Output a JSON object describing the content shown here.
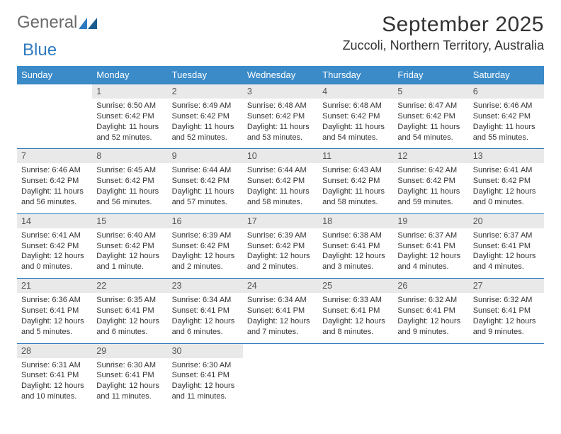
{
  "brand": {
    "word1": "General",
    "word2": "Blue"
  },
  "title": "September 2025",
  "location": "Zuccoli, Northern Territory, Australia",
  "colors": {
    "header_bg": "#3b8bc9",
    "header_text": "#ffffff",
    "daynum_bg": "#e9e9e9",
    "row_border": "#2f7bbf",
    "body_text": "#333333",
    "logo_gray": "#6a6a6a",
    "logo_blue": "#2f7bbf"
  },
  "typography": {
    "title_fontsize": 30,
    "location_fontsize": 18,
    "dayheader_fontsize": 13,
    "cell_fontsize": 11
  },
  "day_headers": [
    "Sunday",
    "Monday",
    "Tuesday",
    "Wednesday",
    "Thursday",
    "Friday",
    "Saturday"
  ],
  "weeks": [
    {
      "nums": [
        "",
        "1",
        "2",
        "3",
        "4",
        "5",
        "6"
      ],
      "cells": [
        null,
        {
          "sunrise": "Sunrise: 6:50 AM",
          "sunset": "Sunset: 6:42 PM",
          "day1": "Daylight: 11 hours",
          "day2": "and 52 minutes."
        },
        {
          "sunrise": "Sunrise: 6:49 AM",
          "sunset": "Sunset: 6:42 PM",
          "day1": "Daylight: 11 hours",
          "day2": "and 52 minutes."
        },
        {
          "sunrise": "Sunrise: 6:48 AM",
          "sunset": "Sunset: 6:42 PM",
          "day1": "Daylight: 11 hours",
          "day2": "and 53 minutes."
        },
        {
          "sunrise": "Sunrise: 6:48 AM",
          "sunset": "Sunset: 6:42 PM",
          "day1": "Daylight: 11 hours",
          "day2": "and 54 minutes."
        },
        {
          "sunrise": "Sunrise: 6:47 AM",
          "sunset": "Sunset: 6:42 PM",
          "day1": "Daylight: 11 hours",
          "day2": "and 54 minutes."
        },
        {
          "sunrise": "Sunrise: 6:46 AM",
          "sunset": "Sunset: 6:42 PM",
          "day1": "Daylight: 11 hours",
          "day2": "and 55 minutes."
        }
      ]
    },
    {
      "nums": [
        "7",
        "8",
        "9",
        "10",
        "11",
        "12",
        "13"
      ],
      "cells": [
        {
          "sunrise": "Sunrise: 6:46 AM",
          "sunset": "Sunset: 6:42 PM",
          "day1": "Daylight: 11 hours",
          "day2": "and 56 minutes."
        },
        {
          "sunrise": "Sunrise: 6:45 AM",
          "sunset": "Sunset: 6:42 PM",
          "day1": "Daylight: 11 hours",
          "day2": "and 56 minutes."
        },
        {
          "sunrise": "Sunrise: 6:44 AM",
          "sunset": "Sunset: 6:42 PM",
          "day1": "Daylight: 11 hours",
          "day2": "and 57 minutes."
        },
        {
          "sunrise": "Sunrise: 6:44 AM",
          "sunset": "Sunset: 6:42 PM",
          "day1": "Daylight: 11 hours",
          "day2": "and 58 minutes."
        },
        {
          "sunrise": "Sunrise: 6:43 AM",
          "sunset": "Sunset: 6:42 PM",
          "day1": "Daylight: 11 hours",
          "day2": "and 58 minutes."
        },
        {
          "sunrise": "Sunrise: 6:42 AM",
          "sunset": "Sunset: 6:42 PM",
          "day1": "Daylight: 11 hours",
          "day2": "and 59 minutes."
        },
        {
          "sunrise": "Sunrise: 6:41 AM",
          "sunset": "Sunset: 6:42 PM",
          "day1": "Daylight: 12 hours",
          "day2": "and 0 minutes."
        }
      ]
    },
    {
      "nums": [
        "14",
        "15",
        "16",
        "17",
        "18",
        "19",
        "20"
      ],
      "cells": [
        {
          "sunrise": "Sunrise: 6:41 AM",
          "sunset": "Sunset: 6:42 PM",
          "day1": "Daylight: 12 hours",
          "day2": "and 0 minutes."
        },
        {
          "sunrise": "Sunrise: 6:40 AM",
          "sunset": "Sunset: 6:42 PM",
          "day1": "Daylight: 12 hours",
          "day2": "and 1 minute."
        },
        {
          "sunrise": "Sunrise: 6:39 AM",
          "sunset": "Sunset: 6:42 PM",
          "day1": "Daylight: 12 hours",
          "day2": "and 2 minutes."
        },
        {
          "sunrise": "Sunrise: 6:39 AM",
          "sunset": "Sunset: 6:42 PM",
          "day1": "Daylight: 12 hours",
          "day2": "and 2 minutes."
        },
        {
          "sunrise": "Sunrise: 6:38 AM",
          "sunset": "Sunset: 6:41 PM",
          "day1": "Daylight: 12 hours",
          "day2": "and 3 minutes."
        },
        {
          "sunrise": "Sunrise: 6:37 AM",
          "sunset": "Sunset: 6:41 PM",
          "day1": "Daylight: 12 hours",
          "day2": "and 4 minutes."
        },
        {
          "sunrise": "Sunrise: 6:37 AM",
          "sunset": "Sunset: 6:41 PM",
          "day1": "Daylight: 12 hours",
          "day2": "and 4 minutes."
        }
      ]
    },
    {
      "nums": [
        "21",
        "22",
        "23",
        "24",
        "25",
        "26",
        "27"
      ],
      "cells": [
        {
          "sunrise": "Sunrise: 6:36 AM",
          "sunset": "Sunset: 6:41 PM",
          "day1": "Daylight: 12 hours",
          "day2": "and 5 minutes."
        },
        {
          "sunrise": "Sunrise: 6:35 AM",
          "sunset": "Sunset: 6:41 PM",
          "day1": "Daylight: 12 hours",
          "day2": "and 6 minutes."
        },
        {
          "sunrise": "Sunrise: 6:34 AM",
          "sunset": "Sunset: 6:41 PM",
          "day1": "Daylight: 12 hours",
          "day2": "and 6 minutes."
        },
        {
          "sunrise": "Sunrise: 6:34 AM",
          "sunset": "Sunset: 6:41 PM",
          "day1": "Daylight: 12 hours",
          "day2": "and 7 minutes."
        },
        {
          "sunrise": "Sunrise: 6:33 AM",
          "sunset": "Sunset: 6:41 PM",
          "day1": "Daylight: 12 hours",
          "day2": "and 8 minutes."
        },
        {
          "sunrise": "Sunrise: 6:32 AM",
          "sunset": "Sunset: 6:41 PM",
          "day1": "Daylight: 12 hours",
          "day2": "and 9 minutes."
        },
        {
          "sunrise": "Sunrise: 6:32 AM",
          "sunset": "Sunset: 6:41 PM",
          "day1": "Daylight: 12 hours",
          "day2": "and 9 minutes."
        }
      ]
    },
    {
      "nums": [
        "28",
        "29",
        "30",
        "",
        "",
        "",
        ""
      ],
      "cells": [
        {
          "sunrise": "Sunrise: 6:31 AM",
          "sunset": "Sunset: 6:41 PM",
          "day1": "Daylight: 12 hours",
          "day2": "and 10 minutes."
        },
        {
          "sunrise": "Sunrise: 6:30 AM",
          "sunset": "Sunset: 6:41 PM",
          "day1": "Daylight: 12 hours",
          "day2": "and 11 minutes."
        },
        {
          "sunrise": "Sunrise: 6:30 AM",
          "sunset": "Sunset: 6:41 PM",
          "day1": "Daylight: 12 hours",
          "day2": "and 11 minutes."
        },
        null,
        null,
        null,
        null
      ]
    }
  ]
}
